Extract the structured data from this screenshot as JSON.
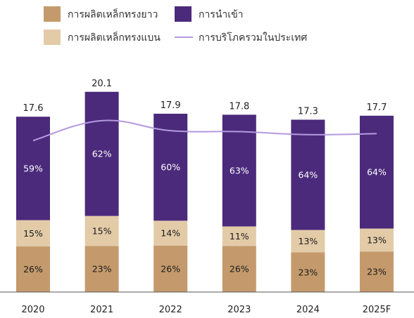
{
  "chart_data": {
    "type": "bar",
    "stacked": true,
    "title": "",
    "xlabel": "",
    "ylabel": "",
    "ylim": [
      0,
      21
    ],
    "grid": false,
    "legend_position": "top-left",
    "categories": [
      "2020",
      "2021",
      "2022",
      "2023",
      "2024",
      "2025F"
    ],
    "totals": [
      17.6,
      20.1,
      17.9,
      17.8,
      17.3,
      17.7
    ],
    "total_labels": [
      "17.6",
      "20.1",
      "17.9",
      "17.8",
      "17.3",
      "17.7"
    ],
    "series": [
      {
        "name": "การผลิตเหล็กทรงยาว",
        "color": "#c49a6c",
        "text_color": "#1a1a1a",
        "percents": [
          26,
          23,
          26,
          26,
          23,
          23
        ],
        "labels": [
          "26%",
          "23%",
          "26%",
          "26%",
          "23%",
          "23%"
        ]
      },
      {
        "name": "การผลิตเหล็กทรงแบน",
        "color": "#e3cba8",
        "text_color": "#1a1a1a",
        "percents": [
          15,
          15,
          14,
          11,
          13,
          13
        ],
        "labels": [
          "15%",
          "15%",
          "14%",
          "11%",
          "13%",
          "13%"
        ]
      },
      {
        "name": "การนำเข้า",
        "color": "#4b2a7b",
        "text_color": "#ffffff",
        "percents": [
          59,
          62,
          60,
          63,
          64,
          64
        ],
        "labels": [
          "59%",
          "62%",
          "60%",
          "63%",
          "64%",
          "64%"
        ]
      }
    ],
    "line_series": {
      "name": "การบริโภครวมในประเทศ",
      "color": "#b49adf",
      "values": [
        15.2,
        17.2,
        16.2,
        16.1,
        15.8,
        15.9
      ]
    }
  }
}
